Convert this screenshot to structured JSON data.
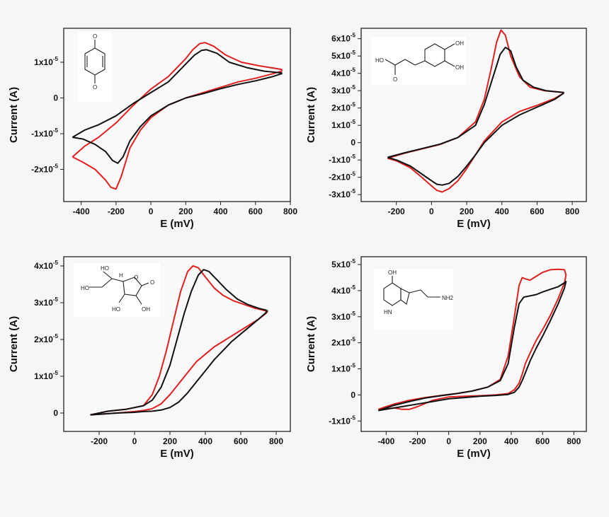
{
  "colors": {
    "trace_1": "#e02020",
    "trace_2": "#111111"
  },
  "chart_data": [
    {
      "type": "line",
      "xlabel": "E (mV)",
      "ylabel": "Current (A)",
      "xlim": [
        -500,
        800
      ],
      "ylim": [
        -2.9e-05,
        1.95e-05
      ],
      "xticks": [
        -400,
        -200,
        0,
        200,
        400,
        600,
        800
      ],
      "xtick_labels": [
        "-400",
        "-200",
        "0",
        "200",
        "400",
        "600",
        "800"
      ],
      "yticks": [
        -2e-05,
        -1e-05,
        0,
        1e-05
      ],
      "ytick_labels": [
        {
          "mantissa": "-2x10",
          "exp": "-5"
        },
        {
          "mantissa": "-1x10",
          "exp": "-5"
        },
        {
          "mantissa": "0",
          "exp": ""
        },
        {
          "mantissa": "1x10",
          "exp": "-5"
        }
      ],
      "molecule": "benzoquinone",
      "molecule_labels": [
        "O",
        "O"
      ],
      "series": [
        {
          "color": "#e02020",
          "x": [
            -450,
            -380,
            -300,
            -200,
            -100,
            0,
            100,
            200,
            240,
            280,
            310,
            360,
            430,
            520,
            620,
            750,
            750,
            700,
            600,
            500,
            400,
            300,
            200,
            100,
            0,
            -60,
            -120,
            -170,
            -200,
            -230,
            -260,
            -320,
            -390,
            -450
          ],
          "y": [
            -1.65e-05,
            -1.35e-05,
            -1.1e-05,
            -7e-06,
            -2e-06,
            2.5e-06,
            6e-06,
            1.1e-05,
            1.35e-05,
            1.52e-05,
            1.55e-05,
            1.45e-05,
            1.2e-05,
            1e-05,
            9e-06,
            8e-06,
            7.5e-06,
            6.8e-06,
            5.5e-06,
            4.5e-06,
            3e-06,
            1.5e-06,
            0.0,
            -2e-06,
            -5.5e-06,
            -9e-06,
            -1.4e-05,
            -2.2e-05,
            -2.55e-05,
            -2.5e-05,
            -2.3e-05,
            -2e-05,
            -1.8e-05,
            -1.65e-05
          ]
        },
        {
          "color": "#111111",
          "x": [
            -450,
            -380,
            -300,
            -200,
            -100,
            0,
            100,
            200,
            250,
            290,
            320,
            380,
            450,
            550,
            650,
            750,
            750,
            700,
            600,
            500,
            400,
            300,
            200,
            100,
            0,
            -60,
            -120,
            -160,
            -190,
            -220,
            -260,
            -320,
            -390,
            -450
          ],
          "y": [
            -1.1e-05,
            -9e-06,
            -7.5e-06,
            -5e-06,
            -1.5e-06,
            1.5e-06,
            4.5e-06,
            9.5e-06,
            1.2e-05,
            1.33e-05,
            1.35e-05,
            1.25e-05,
            1e-05,
            8.5e-06,
            7.5e-06,
            7e-06,
            6.8e-06,
            6e-06,
            4.8e-06,
            3.8e-06,
            2.6e-06,
            1.2e-06,
            0.0,
            -2e-06,
            -5e-06,
            -8e-06,
            -1.2e-05,
            -1.65e-05,
            -1.83e-05,
            -1.75e-05,
            -1.5e-05,
            -1.3e-05,
            -1.15e-05,
            -1.1e-05
          ]
        }
      ]
    },
    {
      "type": "line",
      "xlabel": "E (mV)",
      "ylabel": "Current (A)",
      "xlim": [
        -400,
        880
      ],
      "ylim": [
        -3.4e-05,
        6.6e-05
      ],
      "xticks": [
        -200,
        0,
        200,
        400,
        600,
        800
      ],
      "xtick_labels": [
        "-200",
        "0",
        "200",
        "400",
        "600",
        "800"
      ],
      "yticks": [
        -3e-05,
        -2e-05,
        -1e-05,
        0,
        1e-05,
        2e-05,
        3e-05,
        4e-05,
        5e-05,
        6e-05
      ],
      "ytick_labels": [
        {
          "mantissa": "-3x10",
          "exp": "-5"
        },
        {
          "mantissa": "-2x10",
          "exp": "-5"
        },
        {
          "mantissa": "-1x10",
          "exp": "-5"
        },
        {
          "mantissa": "0",
          "exp": ""
        },
        {
          "mantissa": "1x10",
          "exp": "-5"
        },
        {
          "mantissa": "2x10",
          "exp": "-5"
        },
        {
          "mantissa": "3x10",
          "exp": "-5"
        },
        {
          "mantissa": "4x10",
          "exp": "-5"
        },
        {
          "mantissa": "5x10",
          "exp": "-5"
        },
        {
          "mantissa": "6x10",
          "exp": "-5"
        }
      ],
      "molecule": "caffeic acid",
      "molecule_labels": [
        "OH",
        "OH",
        "HO",
        "O"
      ],
      "series": [
        {
          "color": "#e02020",
          "x": [
            -250,
            -150,
            -50,
            50,
            150,
            250,
            300,
            340,
            370,
            395,
            420,
            450,
            500,
            560,
            640,
            750,
            750,
            700,
            600,
            500,
            400,
            300,
            250,
            200,
            150,
            100,
            60,
            30,
            0,
            -50,
            -120,
            -200,
            -250
          ],
          "y": [
            -9e-06,
            -6e-06,
            -3.5e-06,
            -1e-06,
            3e-06,
            1.2e-05,
            2.5e-05,
            4.3e-05,
            5.8e-05,
            6.5e-05,
            6.2e-05,
            5e-05,
            3.8e-05,
            3.2e-05,
            3e-05,
            2.9e-05,
            2.85e-05,
            2.55e-05,
            2.15e-05,
            1.8e-05,
            1.2e-05,
            1e-06,
            -7e-06,
            -1.5e-05,
            -2.2e-05,
            -2.65e-05,
            -2.85e-05,
            -2.75e-05,
            -2.5e-05,
            -2.05e-05,
            -1.45e-05,
            -1.05e-05,
            -9e-06
          ]
        },
        {
          "color": "#111111",
          "x": [
            -250,
            -150,
            -50,
            50,
            150,
            250,
            300,
            350,
            390,
            420,
            450,
            480,
            520,
            580,
            650,
            750,
            750,
            700,
            600,
            500,
            400,
            300,
            250,
            200,
            150,
            100,
            60,
            30,
            0,
            -50,
            -120,
            -200,
            -250
          ],
          "y": [
            -8.5e-06,
            -5.8e-06,
            -3.3e-06,
            -8e-07,
            3e-06,
            1e-05,
            2.2e-05,
            3.8e-05,
            5.1e-05,
            5.5e-05,
            5.3e-05,
            4.4e-05,
            3.6e-05,
            3.2e-05,
            3e-05,
            2.9e-05,
            2.85e-05,
            2.5e-05,
            2.05e-05,
            1.6e-05,
            1e-05,
            0.0,
            -7e-06,
            -1.35e-05,
            -1.95e-05,
            -2.35e-05,
            -2.45e-05,
            -2.4e-05,
            -2.2e-05,
            -1.85e-05,
            -1.35e-05,
            -1e-05,
            -8.5e-06
          ]
        }
      ]
    },
    {
      "type": "line",
      "xlabel": "E (mV)",
      "ylabel": "Current (A)",
      "xlim": [
        -400,
        880
      ],
      "ylim": [
        -5e-06,
        4.25e-05
      ],
      "xticks": [
        -200,
        0,
        200,
        400,
        600,
        800
      ],
      "xtick_labels": [
        "-200",
        "0",
        "200",
        "400",
        "600",
        "800"
      ],
      "yticks": [
        0,
        1e-05,
        2e-05,
        3e-05,
        4e-05
      ],
      "ytick_labels": [
        {
          "mantissa": "0",
          "exp": ""
        },
        {
          "mantissa": "1x10",
          "exp": "-5"
        },
        {
          "mantissa": "2x10",
          "exp": "-5"
        },
        {
          "mantissa": "3x10",
          "exp": "-5"
        },
        {
          "mantissa": "4x10",
          "exp": "-5"
        }
      ],
      "molecule": "ascorbic acid",
      "molecule_labels": [
        "HO",
        "H",
        "HO",
        "O",
        "O",
        "HO",
        "OH"
      ],
      "series": [
        {
          "color": "#e02020",
          "x": [
            -250,
            -150,
            -50,
            50,
            100,
            140,
            180,
            220,
            260,
            300,
            330,
            360,
            400,
            450,
            500,
            560,
            620,
            680,
            740,
            750,
            740,
            700,
            650,
            600,
            550,
            500,
            450,
            400,
            350,
            300,
            250,
            200,
            150,
            100,
            50,
            0,
            -100,
            -250
          ],
          "y": [
            -5e-07,
            5e-07,
            1e-06,
            2e-06,
            5e-06,
            1e-05,
            1.7e-05,
            2.5e-05,
            3.3e-05,
            3.85e-05,
            4e-05,
            3.95e-05,
            3.7e-05,
            3.4e-05,
            3.2e-05,
            3.05e-05,
            2.95e-05,
            2.85e-05,
            2.78e-05,
            2.75e-05,
            2.7e-05,
            2.55e-05,
            2.4e-05,
            2.25e-05,
            2.1e-05,
            1.95e-05,
            1.8e-05,
            1.6e-05,
            1.4e-05,
            1.1e-05,
            8e-06,
            5e-06,
            2.5e-06,
            1.2e-06,
            7e-07,
            4e-07,
            0.0,
            -5e-07
          ]
        },
        {
          "color": "#111111",
          "x": [
            -250,
            -150,
            -50,
            50,
            100,
            150,
            200,
            240,
            280,
            320,
            360,
            390,
            420,
            460,
            520,
            580,
            640,
            700,
            740,
            750,
            740,
            700,
            650,
            600,
            550,
            500,
            450,
            400,
            350,
            300,
            250,
            200,
            150,
            100,
            50,
            0,
            -100,
            -250
          ],
          "y": [
            -5e-07,
            5e-07,
            1e-06,
            2e-06,
            3.5e-06,
            7e-06,
            1.3e-05,
            2e-05,
            2.7e-05,
            3.3e-05,
            3.75e-05,
            3.9e-05,
            3.85e-05,
            3.65e-05,
            3.35e-05,
            3.1e-05,
            2.95e-05,
            2.85e-05,
            2.8e-05,
            2.78e-05,
            2.72e-05,
            2.55e-05,
            2.35e-05,
            2.15e-05,
            1.95e-05,
            1.7e-05,
            1.45e-05,
            1.15e-05,
            8.5e-06,
            5.5e-06,
            3e-06,
            1.5e-06,
            8e-07,
            5e-07,
            4e-07,
            2e-07,
            0.0,
            -5e-07
          ]
        }
      ]
    },
    {
      "type": "line",
      "xlabel": "E (mV)",
      "ylabel": "Current (A)",
      "xlim": [
        -560,
        880
      ],
      "ylim": [
        -1.4e-05,
        5.3e-05
      ],
      "xticks": [
        -400,
        -200,
        0,
        200,
        400,
        600,
        800
      ],
      "xtick_labels": [
        "-400",
        "-200",
        "0",
        "200",
        "400",
        "600",
        "800"
      ],
      "yticks": [
        -1e-05,
        0,
        1e-05,
        2e-05,
        3e-05,
        4e-05,
        5e-05
      ],
      "ytick_labels": [
        {
          "mantissa": "-1x10",
          "exp": "-5"
        },
        {
          "mantissa": "0",
          "exp": ""
        },
        {
          "mantissa": "1x10",
          "exp": "-5"
        },
        {
          "mantissa": "2x10",
          "exp": "-5"
        },
        {
          "mantissa": "3x10",
          "exp": "-5"
        },
        {
          "mantissa": "4x10",
          "exp": "-5"
        },
        {
          "mantissa": "5x10",
          "exp": "-5"
        }
      ],
      "molecule": "serotonin",
      "molecule_labels": [
        "OH",
        "HN",
        "NH2"
      ],
      "series": [
        {
          "color": "#e02020",
          "x": [
            -450,
            -350,
            -250,
            -150,
            -50,
            50,
            150,
            250,
            330,
            380,
            420,
            450,
            470,
            490,
            520,
            560,
            600,
            650,
            700,
            740,
            750,
            740,
            700,
            650,
            600,
            560,
            520,
            490,
            470,
            450,
            420,
            380,
            300,
            200,
            100,
            0,
            -100,
            -200,
            -250,
            -300,
            -350,
            -420,
            -450
          ],
          "y": [
            -5.5e-06,
            -3.5e-06,
            -2e-06,
            -1e-06,
            -2e-07,
            5e-07,
            1.5e-06,
            3e-06,
            6e-06,
            1.5e-05,
            3e-05,
            4.2e-05,
            4.5e-05,
            4.45e-05,
            4.4e-05,
            4.55e-05,
            4.7e-05,
            4.8e-05,
            4.82e-05,
            4.8e-05,
            4.6e-05,
            4.3e-05,
            3.7e-05,
            3.05e-05,
            2.5e-05,
            2.1e-05,
            1.6e-05,
            1.2e-05,
            8e-06,
            4.5e-06,
            2e-06,
            5e-07,
            0.0,
            -3e-07,
            -5e-07,
            -8e-07,
            -2e-06,
            -4.5e-06,
            -5.5e-06,
            -5.5e-06,
            -5e-06,
            -5.5e-06,
            -5.5e-06
          ]
        },
        {
          "color": "#111111",
          "x": [
            -450,
            -350,
            -250,
            -150,
            -50,
            50,
            150,
            250,
            330,
            380,
            420,
            450,
            480,
            520,
            560,
            600,
            650,
            700,
            740,
            750,
            740,
            700,
            650,
            600,
            560,
            520,
            490,
            470,
            450,
            420,
            380,
            300,
            200,
            100,
            0,
            -100,
            -200,
            -300,
            -400,
            -450
          ],
          "y": [
            -6e-06,
            -4e-06,
            -2.5e-06,
            -1.2e-06,
            -3e-07,
            5e-07,
            1.5e-06,
            3e-06,
            5.5e-06,
            1.2e-05,
            2.6e-05,
            3.5e-05,
            3.75e-05,
            3.8e-05,
            3.85e-05,
            3.95e-05,
            4.05e-05,
            4.15e-05,
            4.3e-05,
            4.35e-05,
            4.1e-05,
            3.5e-05,
            2.85e-05,
            2.25e-05,
            1.8e-05,
            1.3e-05,
            8.5e-06,
            5.5e-06,
            3e-06,
            1e-06,
            2e-07,
            -2e-07,
            -5e-07,
            -1e-06,
            -1.5e-06,
            -2.5e-06,
            -3.5e-06,
            -4.5e-06,
            -5.5e-06,
            -6e-06
          ]
        }
      ]
    }
  ]
}
